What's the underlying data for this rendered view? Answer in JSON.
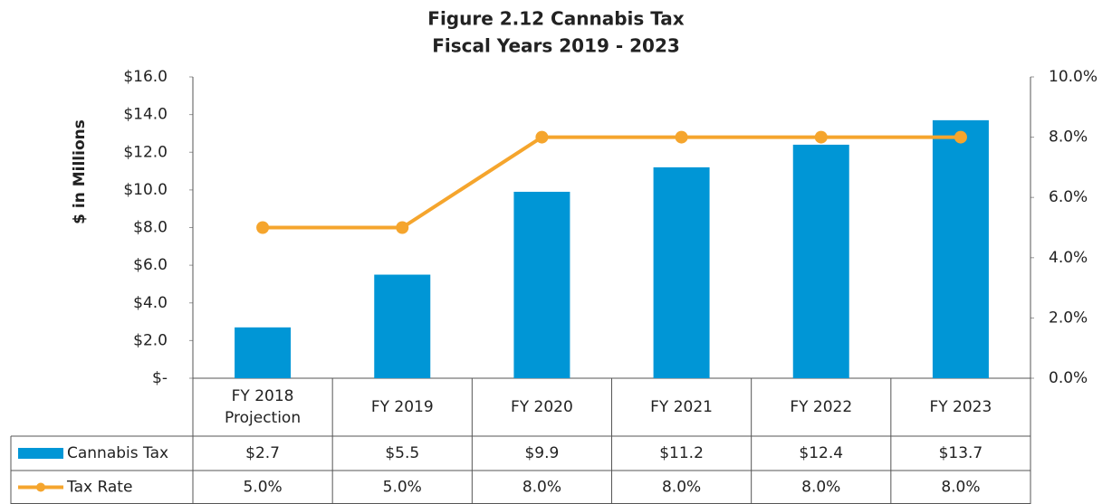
{
  "chart_data": {
    "type": "combo",
    "title": "Figure 2.12 Cannabis Tax",
    "subtitle": "Fiscal Years 2019 - 2023",
    "y_label": "$ in Millions",
    "categories": [
      "FY 2018 Projection",
      "FY 2019",
      "FY 2020",
      "FY 2021",
      "FY 2022",
      "FY 2023"
    ],
    "series": [
      {
        "name": "Cannabis Tax",
        "type": "bar",
        "color": "#0096d6",
        "values": [
          2.7,
          5.5,
          9.9,
          11.2,
          12.4,
          13.7
        ],
        "value_labels": [
          "$2.7",
          "$5.5",
          "$9.9",
          "$11.2",
          "$12.4",
          "$13.7"
        ]
      },
      {
        "name": "Tax Rate",
        "type": "line",
        "axis": "y2",
        "color": "#f5a52d",
        "values": [
          5,
          5,
          8,
          8,
          8,
          8
        ],
        "value_labels": [
          "5.0%",
          "5.0%",
          "8.0%",
          "8.0%",
          "8.0%",
          "8.0%"
        ]
      }
    ],
    "ylim": [
      0,
      16
    ],
    "yticks": [
      {
        "value": 0,
        "label": "$-"
      },
      {
        "value": 2,
        "label": "$2.0"
      },
      {
        "value": 4,
        "label": "$4.0"
      },
      {
        "value": 6,
        "label": "$6.0"
      },
      {
        "value": 8,
        "label": "$8.0"
      },
      {
        "value": 10,
        "label": "$10.0"
      },
      {
        "value": 12,
        "label": "$12.0"
      },
      {
        "value": 14,
        "label": "$14.0"
      },
      {
        "value": 16,
        "label": "$16.0"
      }
    ],
    "y2lim": [
      0,
      10
    ],
    "y2ticks": [
      {
        "value": 0,
        "label": "0.0%"
      },
      {
        "value": 2,
        "label": "2.0%"
      },
      {
        "value": 4,
        "label": "4.0%"
      },
      {
        "value": 6,
        "label": "6.0%"
      },
      {
        "value": 8,
        "label": "8.0%"
      },
      {
        "value": 10,
        "label": "10.0%"
      }
    ]
  }
}
